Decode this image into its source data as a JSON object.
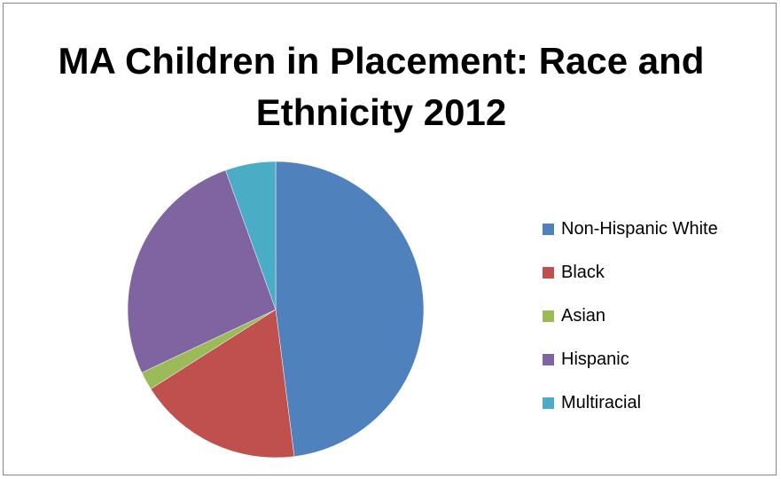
{
  "chart_data": {
    "type": "pie",
    "title": "MA Children in Placement: Race and Ethnicity 2012",
    "legend_position": "right",
    "categories": [
      "Non-Hispanic White",
      "Black",
      "Asian",
      "Hispanic",
      "Multiracial"
    ],
    "values": [
      48.0,
      18.0,
      2.0,
      26.5,
      5.5
    ],
    "colors": [
      "#4F81BD",
      "#C0504D",
      "#9BBB59",
      "#8064A2",
      "#4BACC6"
    ]
  }
}
